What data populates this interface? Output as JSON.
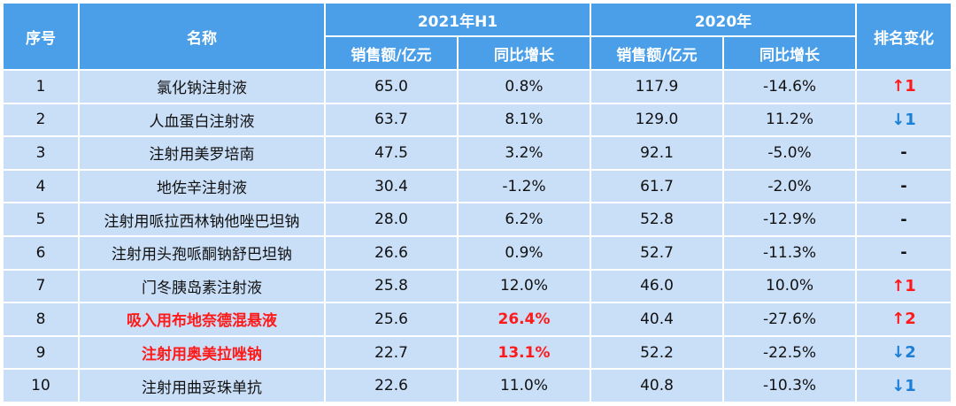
{
  "headers": {
    "index": "序号",
    "name": "名称",
    "period1": "2021年H1",
    "period2": "2020年",
    "rank_change": "排名变化",
    "sales": "销售额/亿元",
    "growth": "同比增长"
  },
  "rows": [
    {
      "idx": "1",
      "name": "氯化钠注射液",
      "s1": "65.0",
      "g1": "0.8%",
      "s2": "117.9",
      "g2": "-14.6%",
      "change": "↑1",
      "dir": "up",
      "highlight": false
    },
    {
      "idx": "2",
      "name": "人血蛋白注射液",
      "s1": "63.7",
      "g1": "8.1%",
      "s2": "129.0",
      "g2": "11.2%",
      "change": "↓1",
      "dir": "down",
      "highlight": false
    },
    {
      "idx": "3",
      "name": "注射用美罗培南",
      "s1": "47.5",
      "g1": "3.2%",
      "s2": "92.1",
      "g2": "-5.0%",
      "change": "-",
      "dir": "none",
      "highlight": false
    },
    {
      "idx": "4",
      "name": "地佐辛注射液",
      "s1": "30.4",
      "g1": "-1.2%",
      "s2": "61.7",
      "g2": "-2.0%",
      "change": "-",
      "dir": "none",
      "highlight": false
    },
    {
      "idx": "5",
      "name": "注射用哌拉西林钠他唑巴坦钠",
      "s1": "28.0",
      "g1": "6.2%",
      "s2": "52.8",
      "g2": "-12.9%",
      "change": "-",
      "dir": "none",
      "highlight": false
    },
    {
      "idx": "6",
      "name": "注射用头孢哌酮钠舒巴坦钠",
      "s1": "26.6",
      "g1": "0.9%",
      "s2": "52.7",
      "g2": "-11.3%",
      "change": "-",
      "dir": "none",
      "highlight": false
    },
    {
      "idx": "7",
      "name": "门冬胰岛素注射液",
      "s1": "25.8",
      "g1": "12.0%",
      "s2": "46.0",
      "g2": "10.0%",
      "change": "↑1",
      "dir": "up",
      "highlight": false
    },
    {
      "idx": "8",
      "name": "吸入用布地奈德混悬液",
      "s1": "25.6",
      "g1": "26.4%",
      "s2": "40.4",
      "g2": "-27.6%",
      "change": "↑2",
      "dir": "up",
      "highlight": true
    },
    {
      "idx": "9",
      "name": "注射用奥美拉唑钠",
      "s1": "22.7",
      "g1": "13.1%",
      "s2": "52.2",
      "g2": "-22.5%",
      "change": "↓2",
      "dir": "down",
      "highlight": true
    },
    {
      "idx": "10",
      "name": "注射用曲妥珠单抗",
      "s1": "22.6",
      "g1": "11.0%",
      "s2": "40.8",
      "g2": "-10.3%",
      "change": "↓1",
      "dir": "down",
      "highlight": false
    }
  ]
}
